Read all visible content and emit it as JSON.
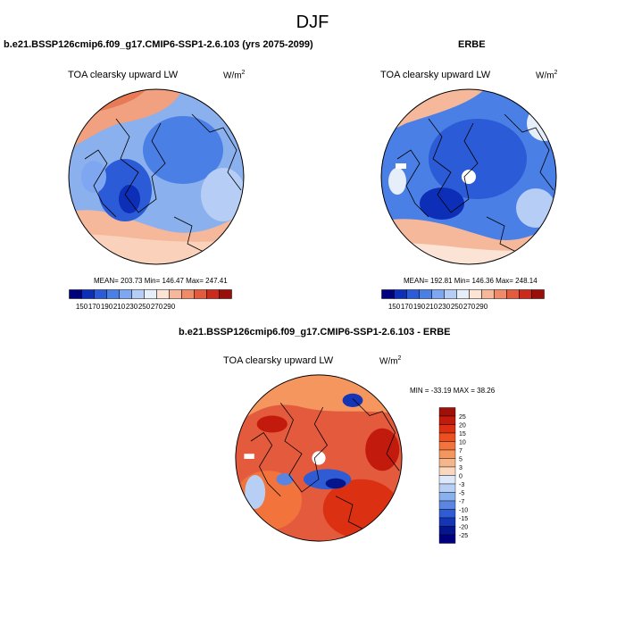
{
  "figure_title": "DJF",
  "panels": [
    {
      "title": "b.e21.BSSP126cmip6.f09_g17.CMIP6-SSP1-2.6.103 (yrs 2075-2099)",
      "variable": "TOA clearsky upward LW",
      "units_base": "W/m",
      "units_exp": "2",
      "stats": "MEAN= 203.73  Min= 146.47  Max= 247.41"
    },
    {
      "title": "ERBE",
      "variable": "TOA clearsky upward LW",
      "units_base": "W/m",
      "units_exp": "2",
      "stats": "MEAN= 192.81  Min= 146.36  Max= 248.14"
    },
    {
      "title": "b.e21.BSSP126cmip6.f09_g17.CMIP6-SSP1-2.6.103 - ERBE",
      "variable": "TOA clearsky upward LW",
      "units_base": "W/m",
      "units_exp": "2",
      "stats": "MIN = -33.19 MAX =  38.26"
    }
  ],
  "colorbar_abs": {
    "labels": [
      "150",
      "170",
      "190",
      "210",
      "230",
      "250",
      "270",
      "290"
    ],
    "colors": [
      "#00007f",
      "#0d2fb8",
      "#2b5bd6",
      "#4a7fe6",
      "#7fa6f0",
      "#b6cdf5",
      "#e6eefa",
      "#fbe3d6",
      "#f6b79a",
      "#ef8b68",
      "#e45a3c",
      "#cc2a1c",
      "#9a0f0a"
    ]
  },
  "colorbar_diff": {
    "labels": [
      "25",
      "20",
      "15",
      "10",
      "7",
      "5",
      "3",
      "0",
      "-3",
      "-5",
      "-7",
      "-10",
      "-15",
      "-20",
      "-25"
    ],
    "colors": [
      "#a01008",
      "#c21a0c",
      "#dc3012",
      "#ec5020",
      "#f2743c",
      "#f4965e",
      "#f6b68c",
      "#fad8c0",
      "#dde8fa",
      "#b8cff5",
      "#8bb0ee",
      "#5a86e2",
      "#2f5cd4",
      "#1436b6",
      "#05168c",
      "#00007f"
    ]
  }
}
